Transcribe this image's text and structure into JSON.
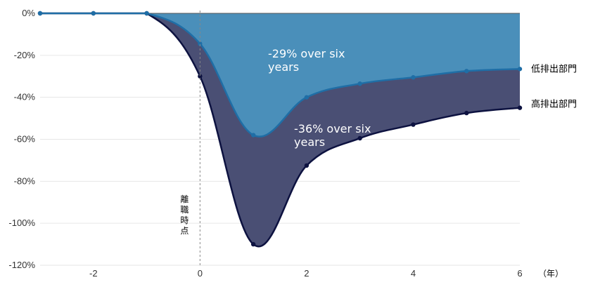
{
  "chart_data": {
    "type": "area",
    "x": [
      -3,
      -2,
      -1,
      0,
      1,
      2,
      3,
      4,
      5,
      6
    ],
    "xlim": [
      -3,
      6
    ],
    "ylim": [
      -120,
      0
    ],
    "x_ticks": [
      -2,
      0,
      2,
      4,
      6
    ],
    "y_ticks": [
      0,
      -20,
      -40,
      -60,
      -80,
      -100,
      -120
    ],
    "x_tick_labels": [
      "-2",
      "0",
      "2",
      "4",
      "6"
    ],
    "y_tick_labels": [
      "0%",
      "-20%",
      "-40%",
      "-60%",
      "-80%",
      "-100%",
      "-120%"
    ],
    "x_unit": "（年）",
    "grid": true,
    "series": [
      {
        "name": "低排出部門",
        "values": [
          0,
          0,
          0,
          -14.5,
          -58,
          -40,
          -33.5,
          -30.5,
          -27.5,
          -26.5
        ],
        "line_color": "#1f6ea6",
        "fill_color": "#4a8fba",
        "annotation": "-29% over six\nyears"
      },
      {
        "name": "高排出部門",
        "values": [
          0,
          0,
          0,
          -30,
          -110,
          -72.5,
          -59.5,
          -53,
          -47.5,
          -45
        ],
        "line_color": "#0d1240",
        "fill_color": "#4a4f74",
        "annotation": "-36% over six\nyears"
      }
    ],
    "vertical_line": {
      "x": 0,
      "label": "離職時点"
    }
  }
}
